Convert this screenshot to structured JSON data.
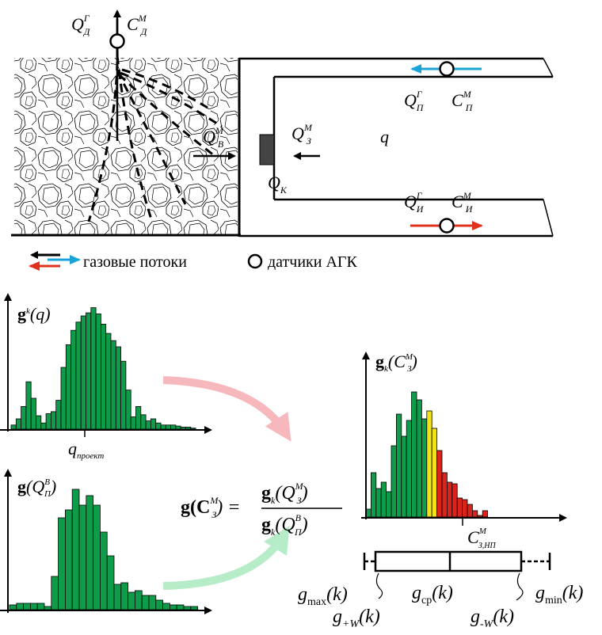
{
  "mine": {
    "QD": "Q",
    "QD_sup": "Г",
    "QD_sub": "Д",
    "CD": "C",
    "CD_sup": "М",
    "CD_sub": "Д",
    "QP": "Q",
    "QP_sup": "Г",
    "QP_sub": "П",
    "CP": "C",
    "CP_sup": "М",
    "CP_sub": "П",
    "QV": "Q",
    "QV_sup": "М",
    "QV_sub": "В",
    "QZ": "Q",
    "QZ_sup": "М",
    "QZ_sub": "З",
    "q": "q",
    "QK": "Q",
    "QK_sub": "К",
    "QI": "Q",
    "QI_sup": "Г",
    "QI_sub": "И",
    "CI": "C",
    "CI_sup": "М",
    "CI_sub": "И"
  },
  "legend": {
    "flows_label": "газовые потоки",
    "sensors_label": "датчики АГК",
    "colors": {
      "black": "#000000",
      "blue": "#1aa3d9",
      "red": "#e0301e"
    }
  },
  "hist1": {
    "ylabel_main": "g",
    "ylabel_sup": "k",
    "ylabel_arg": "(q)",
    "xlabel_main": "q",
    "xlabel_sub": "проект",
    "color": "#0e9b4a",
    "values": [
      4,
      10,
      22,
      46,
      30,
      13,
      6,
      15,
      17,
      28,
      60,
      82,
      96,
      104,
      110,
      113,
      118,
      112,
      102,
      93,
      86,
      80,
      66,
      38,
      12,
      22,
      14,
      8,
      10,
      6,
      4,
      4,
      4,
      3,
      2,
      2,
      1
    ]
  },
  "hist2": {
    "ylabel_main": "g",
    "ylabel_arg": "(Q",
    "ylabel_sup": "В",
    "ylabel_sub": "П",
    "ylabel_close": ")",
    "color": "#0e9b4a",
    "values": [
      6,
      8,
      8,
      8,
      8,
      4,
      42,
      116,
      126,
      152,
      132,
      144,
      132,
      98,
      68,
      32,
      34,
      22,
      24,
      18,
      18,
      12,
      8,
      6,
      6,
      4,
      4
    ]
  },
  "formula": {
    "lhs": "g(C",
    "lhs_sup": "М",
    "lhs_sub": "З",
    "lhs_close": ") =",
    "num": "g",
    "num_sub": "k",
    "num_arg": "(Q",
    "num_sup": "М",
    "num_argsub": "З",
    "num_close": ")",
    "den": "g",
    "den_sub": "k",
    "den_arg": "(Q",
    "den_sup": "В",
    "den_argsub": "П",
    "den_close": ")"
  },
  "hist3": {
    "ylabel_main": "g",
    "ylabel_sub": "k",
    "ylabel_arg": "(C",
    "ylabel_sup": "М",
    "ylabel_argsub": "З",
    "ylabel_close": ")",
    "xlabel_main": "C",
    "xlabel_sup": "М",
    "xlabel_sub": "З,НП",
    "green": "#0e9b4a",
    "yellow": "#f2e21c",
    "red": "#d9231b",
    "values": [
      10,
      56,
      36,
      44,
      32,
      90,
      130,
      102,
      122,
      158,
      148,
      124,
      134,
      112,
      84,
      56,
      44,
      42,
      24,
      22,
      16,
      8,
      2,
      8
    ],
    "yellow_index": [
      12,
      13
    ],
    "red_from": 14
  },
  "boxplot": {
    "gmax": "g",
    "gmax_sub": "max",
    "gmax_arg": "(k)",
    "gcp": "g",
    "gcp_sub": "ср",
    "gcp_arg": "(k)",
    "gmin": "g",
    "gmin_sub": "min",
    "gmin_arg": "(k)",
    "gpw": "g",
    "gpw_sub": "+W",
    "gpw_arg": "(k)",
    "gmw": "g",
    "gmw_sub": "-W",
    "gmw_arg": "(k)"
  },
  "arrows": {
    "pink": "#f7b8bd",
    "lightgreen": "#b6ecc8"
  }
}
